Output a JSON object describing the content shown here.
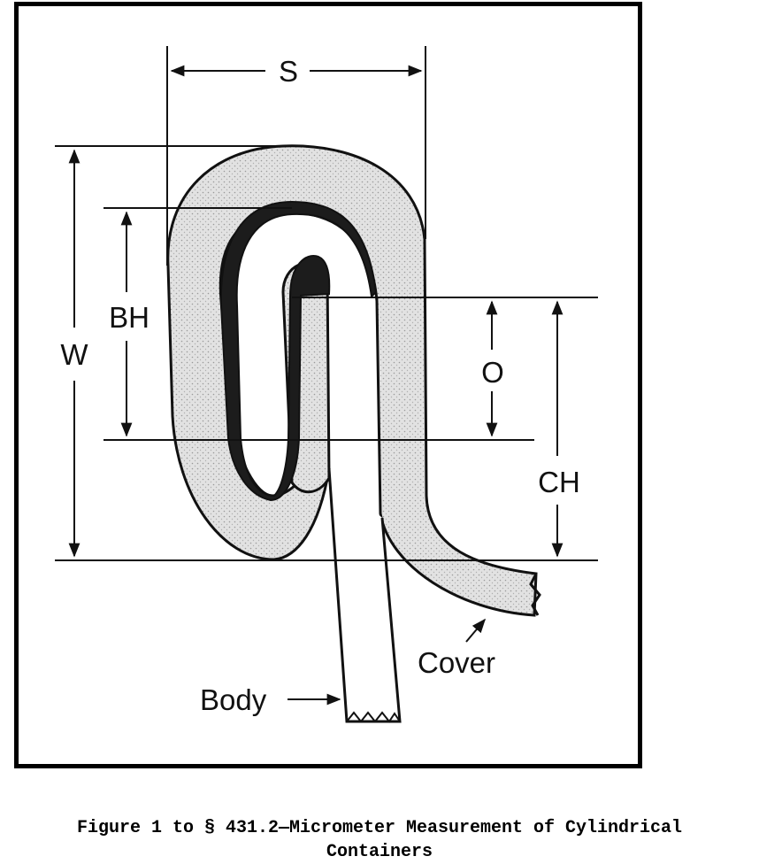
{
  "diagram": {
    "dimension_labels": {
      "s": "S",
      "w": "W",
      "bh": "BH",
      "o": "O",
      "ch": "CH"
    },
    "part_labels": {
      "body": "Body",
      "cover": "Cover"
    },
    "colors": {
      "line": "#111111",
      "cover_fill": "#dcdcdc",
      "body_hook_fill": "#1c1c1c",
      "frame": "#000000"
    }
  },
  "caption": {
    "line1": "Figure 1 to § 431.2—Micrometer Measurement of Cylindrical",
    "line2": "Containers"
  }
}
